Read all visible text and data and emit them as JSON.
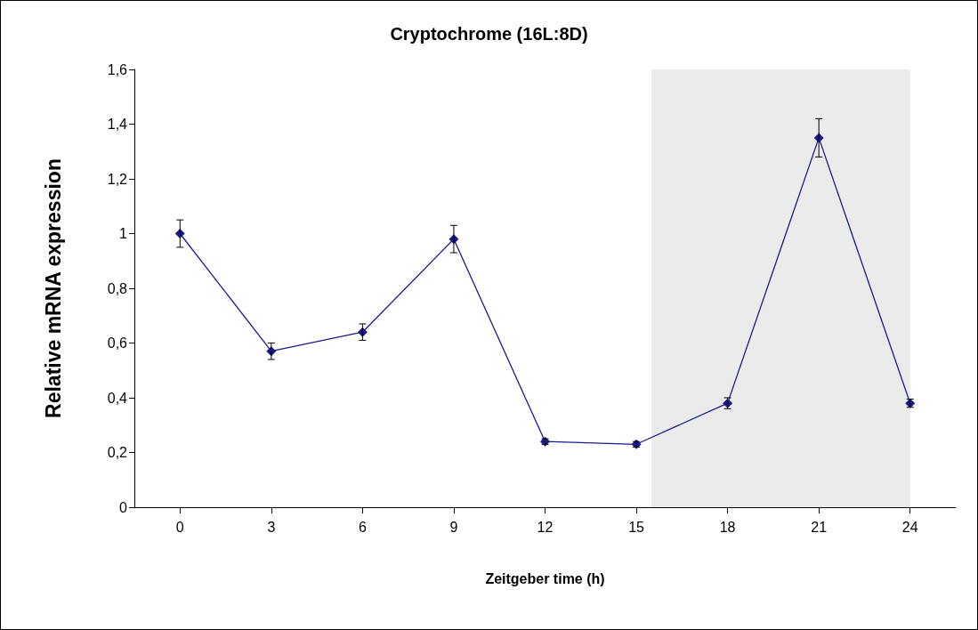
{
  "chart_data": {
    "type": "line",
    "title": "Cryptochrome (16L:8D)",
    "xlabel": "Zeitgeber time (h)",
    "ylabel": "Relative mRNA expression",
    "x": [
      0,
      3,
      6,
      9,
      12,
      15,
      18,
      21,
      24
    ],
    "series": [
      {
        "color": "#1a1a8c",
        "values": [
          1.0,
          0.57,
          0.64,
          0.98,
          0.24,
          0.23,
          0.38,
          1.35,
          0.38
        ],
        "errors": [
          0.05,
          0.03,
          0.03,
          0.05,
          0.01,
          0.01,
          0.02,
          0.07,
          0.015
        ]
      }
    ],
    "xlim": [
      -1.5,
      25.5
    ],
    "xticks": [
      0,
      3,
      6,
      9,
      12,
      15,
      18,
      21,
      24
    ],
    "ylim": [
      0,
      1.6
    ],
    "yticks": [
      0,
      {
        "value": 0.2,
        "label": "0,2"
      },
      {
        "value": 0.4,
        "label": "0,4"
      },
      {
        "value": 0.6,
        "label": "0,6"
      },
      {
        "value": 0.8,
        "label": "0,8"
      },
      1,
      {
        "value": 1.2,
        "label": "1,2"
      },
      {
        "value": 1.4,
        "label": "1,4"
      },
      {
        "value": 1.6,
        "label": "1,6"
      }
    ],
    "bands": [
      {
        "axis": "x",
        "from": 15.5,
        "to": 24,
        "color": "#ebebeb"
      }
    ],
    "marker": "diamond",
    "line_style": "solid",
    "grid": false
  }
}
